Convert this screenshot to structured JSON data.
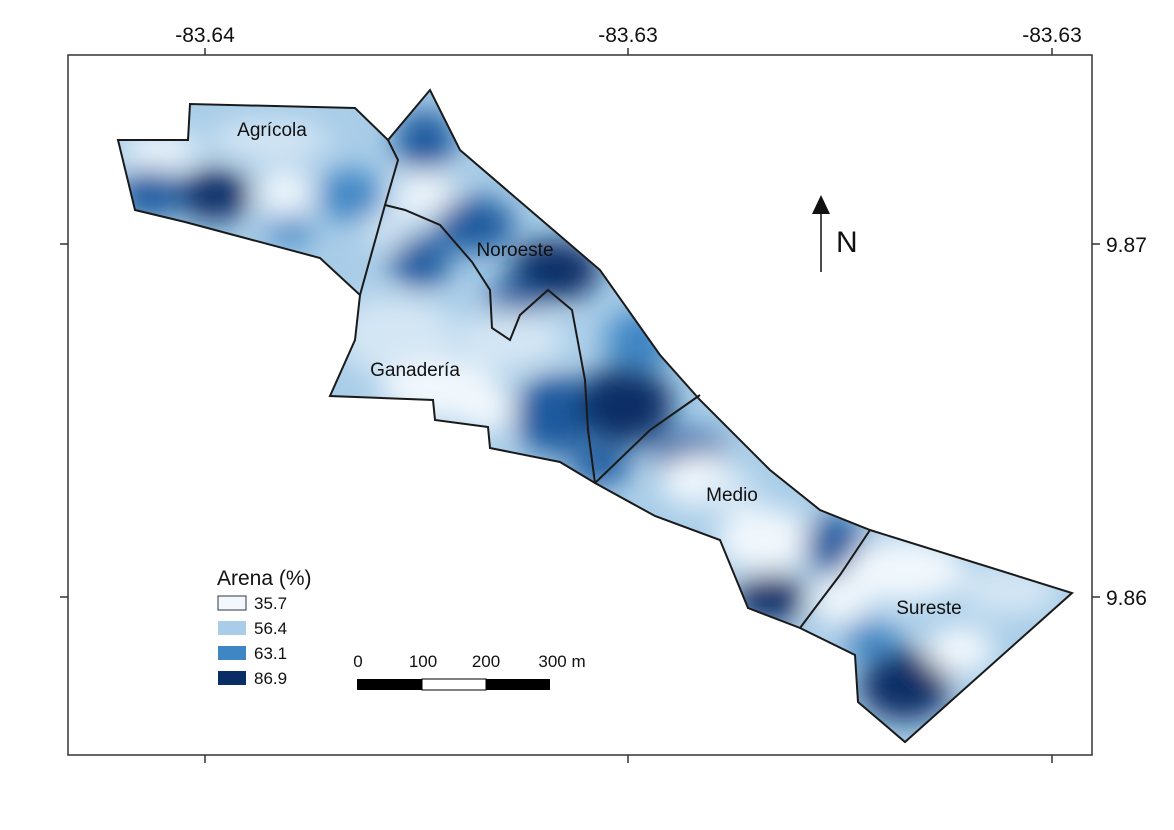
{
  "map": {
    "x_ticks": [
      "-83.64",
      "-83.63",
      "-83.63"
    ],
    "y_ticks": [
      "9.87",
      "9.86"
    ],
    "zones": [
      {
        "id": "agricola",
        "label": "Agrícola"
      },
      {
        "id": "noroeste",
        "label": "Noroeste"
      },
      {
        "id": "ganaderia",
        "label": "Ganadería"
      },
      {
        "id": "medio",
        "label": "Medio"
      },
      {
        "id": "sureste",
        "label": "Sureste"
      }
    ],
    "north_label": "N",
    "legend": {
      "title": "Arena (%)",
      "items": [
        {
          "label": "35.7",
          "color": "#f2f8fd"
        },
        {
          "label": "56.4",
          "color": "#a9cde8"
        },
        {
          "label": "63.1",
          "color": "#3f86c4"
        },
        {
          "label": "86.9",
          "color": "#0b2d66"
        }
      ]
    },
    "scale_bar": {
      "labels": [
        "0",
        "100",
        "200",
        "300 m"
      ]
    },
    "colors": {
      "light": "#f2f8fd",
      "pale": "#d4e6f4",
      "mid_light": "#a9cde8",
      "mid": "#3f86c4",
      "dark": "#1d5a9e",
      "darkest": "#0b2d66",
      "boundary": "#1a1a1a"
    }
  }
}
